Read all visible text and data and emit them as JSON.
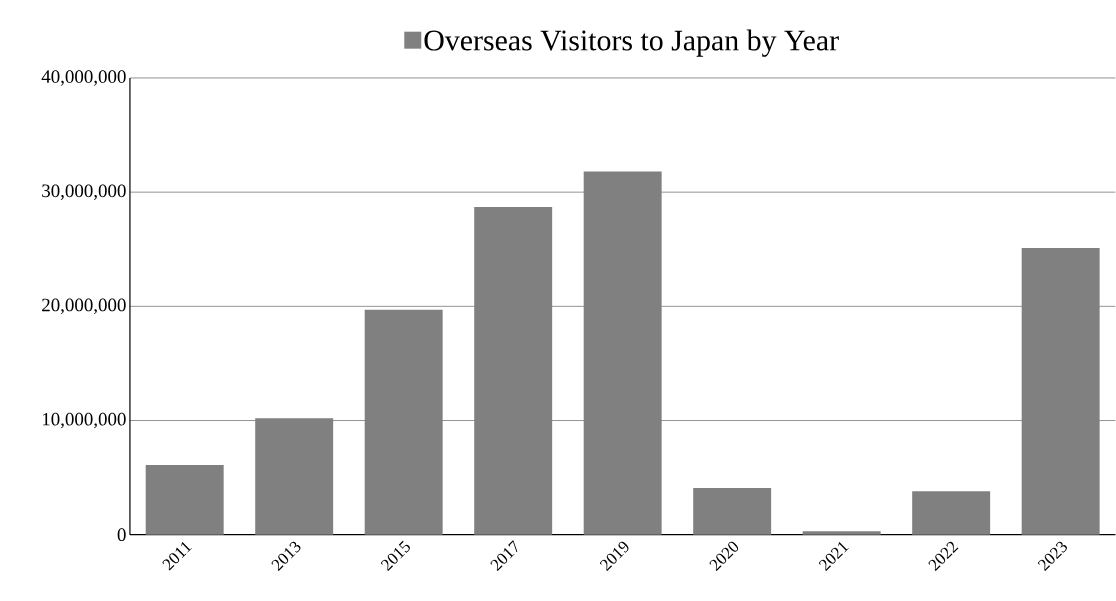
{
  "chart_data": {
    "type": "bar",
    "categories": [
      "2011",
      "2013",
      "2015",
      "2017",
      "2019",
      "2020",
      "2021",
      "2022",
      "2023"
    ],
    "series": [
      {
        "name": "Overseas Visitors to Japan by Year",
        "color": "#808080",
        "values": [
          6100000,
          10200000,
          19700000,
          28700000,
          31800000,
          4100000,
          300000,
          3800000,
          25100000
        ]
      }
    ],
    "ylim": [
      0,
      40000000
    ],
    "yticks": [
      {
        "value": 0,
        "label": "0"
      },
      {
        "value": 10000000,
        "label": "10,000,000"
      },
      {
        "value": 20000000,
        "label": "20,000,000"
      },
      {
        "value": 30000000,
        "label": "30,000,000"
      },
      {
        "value": 40000000,
        "label": "40,000,000"
      }
    ],
    "grid": "y",
    "legend": "top"
  }
}
